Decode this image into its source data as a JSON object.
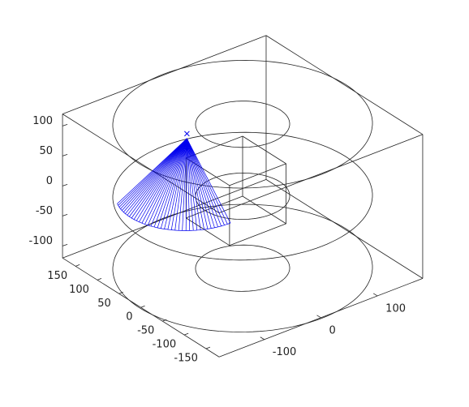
{
  "chart_data": {
    "type": "line3d",
    "xlim": [
      -180,
      180
    ],
    "ylim": [
      -180,
      180
    ],
    "zlim": [
      -120,
      120
    ],
    "xticks": [
      -150,
      -100,
      -50,
      0,
      50,
      100,
      150
    ],
    "yticks": [
      -100,
      0,
      100
    ],
    "zticks": [
      -100,
      -50,
      0,
      50,
      100
    ],
    "rings": [
      {
        "z": 120,
        "radius": 182
      },
      {
        "z": 120,
        "radius": 66
      },
      {
        "z": 0,
        "radius": 182
      },
      {
        "z": 0,
        "radius": 66
      },
      {
        "z": -120,
        "radius": 182
      },
      {
        "z": -120,
        "radius": 66
      }
    ],
    "cube": {
      "x": [
        -100,
        0
      ],
      "y": [
        -100,
        0
      ],
      "z": [
        0,
        100
      ]
    },
    "cone": {
      "apex": [
        50,
        -60,
        95
      ],
      "center": [
        50,
        -60,
        0
      ],
      "radius": 100,
      "theta": [
        180,
        295
      ],
      "lines": 40,
      "color": "#0000ee"
    }
  }
}
